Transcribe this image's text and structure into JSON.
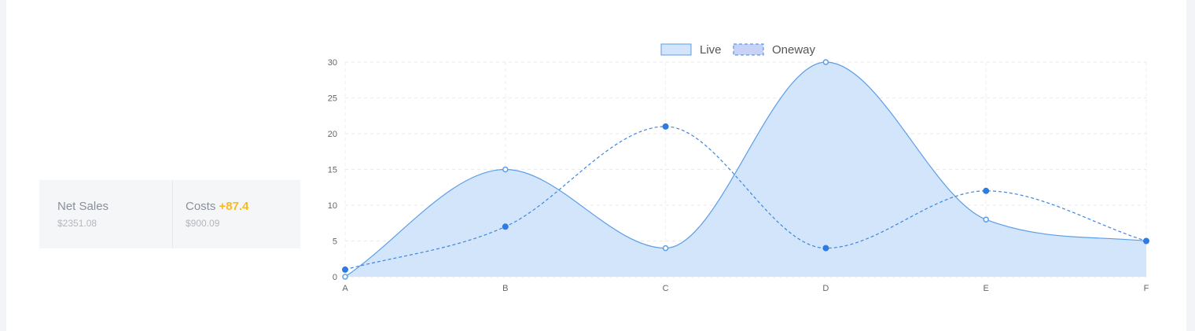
{
  "stats": [
    {
      "label": "Net Sales",
      "delta": "",
      "value": "$2351.08"
    },
    {
      "label": "Costs",
      "delta": "+87.4",
      "value": "$900.09"
    }
  ],
  "colors": {
    "live_fill": "#d3e5fb",
    "live_line": "#5a9ee8",
    "oneway_line": "#3e85e0",
    "oneway_point": "#2d7be5",
    "legend_oneway_fill": "#c8d2f7",
    "delta": "#f7b924"
  },
  "chart_data": {
    "type": "area",
    "categories": [
      "A",
      "B",
      "C",
      "D",
      "E",
      "F"
    ],
    "series": [
      {
        "name": "Live",
        "values": [
          0,
          15,
          4,
          30,
          8,
          5
        ],
        "style": "filled-solid"
      },
      {
        "name": "Oneway",
        "values": [
          1,
          7,
          21,
          4,
          12,
          5
        ],
        "style": "dashed"
      }
    ],
    "ylim": [
      0,
      30
    ],
    "yticks": [
      0,
      5,
      10,
      15,
      20,
      25,
      30
    ],
    "grid": true,
    "legend": "top-center"
  }
}
